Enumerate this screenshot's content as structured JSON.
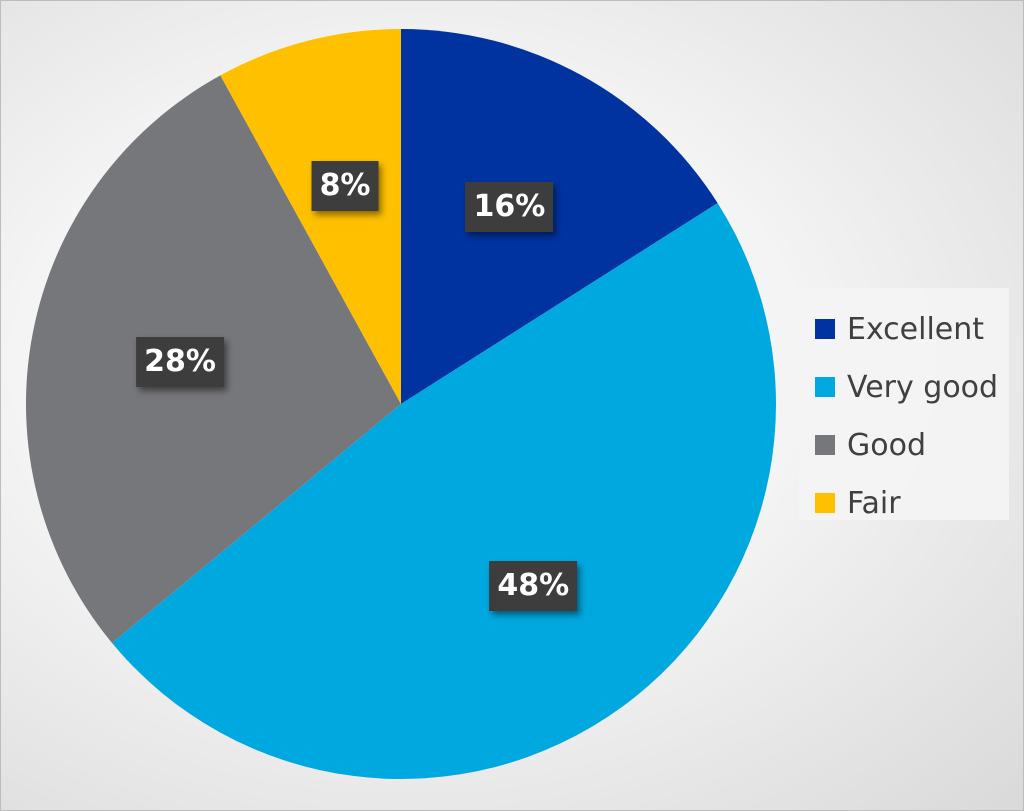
{
  "chart_data": {
    "type": "pie",
    "title": "",
    "categories": [
      "Excellent",
      "Very good",
      "Good",
      "Fair"
    ],
    "values": [
      16,
      48,
      28,
      8
    ],
    "labels": [
      "16%",
      "48%",
      "28%",
      "8%"
    ],
    "colors": [
      "#0033A0",
      "#00A8E0",
      "#76777B",
      "#FFC000"
    ],
    "start_angle": "12 o'clock",
    "direction": "clockwise",
    "legend_position": "right",
    "data_labels_visible": true
  }
}
